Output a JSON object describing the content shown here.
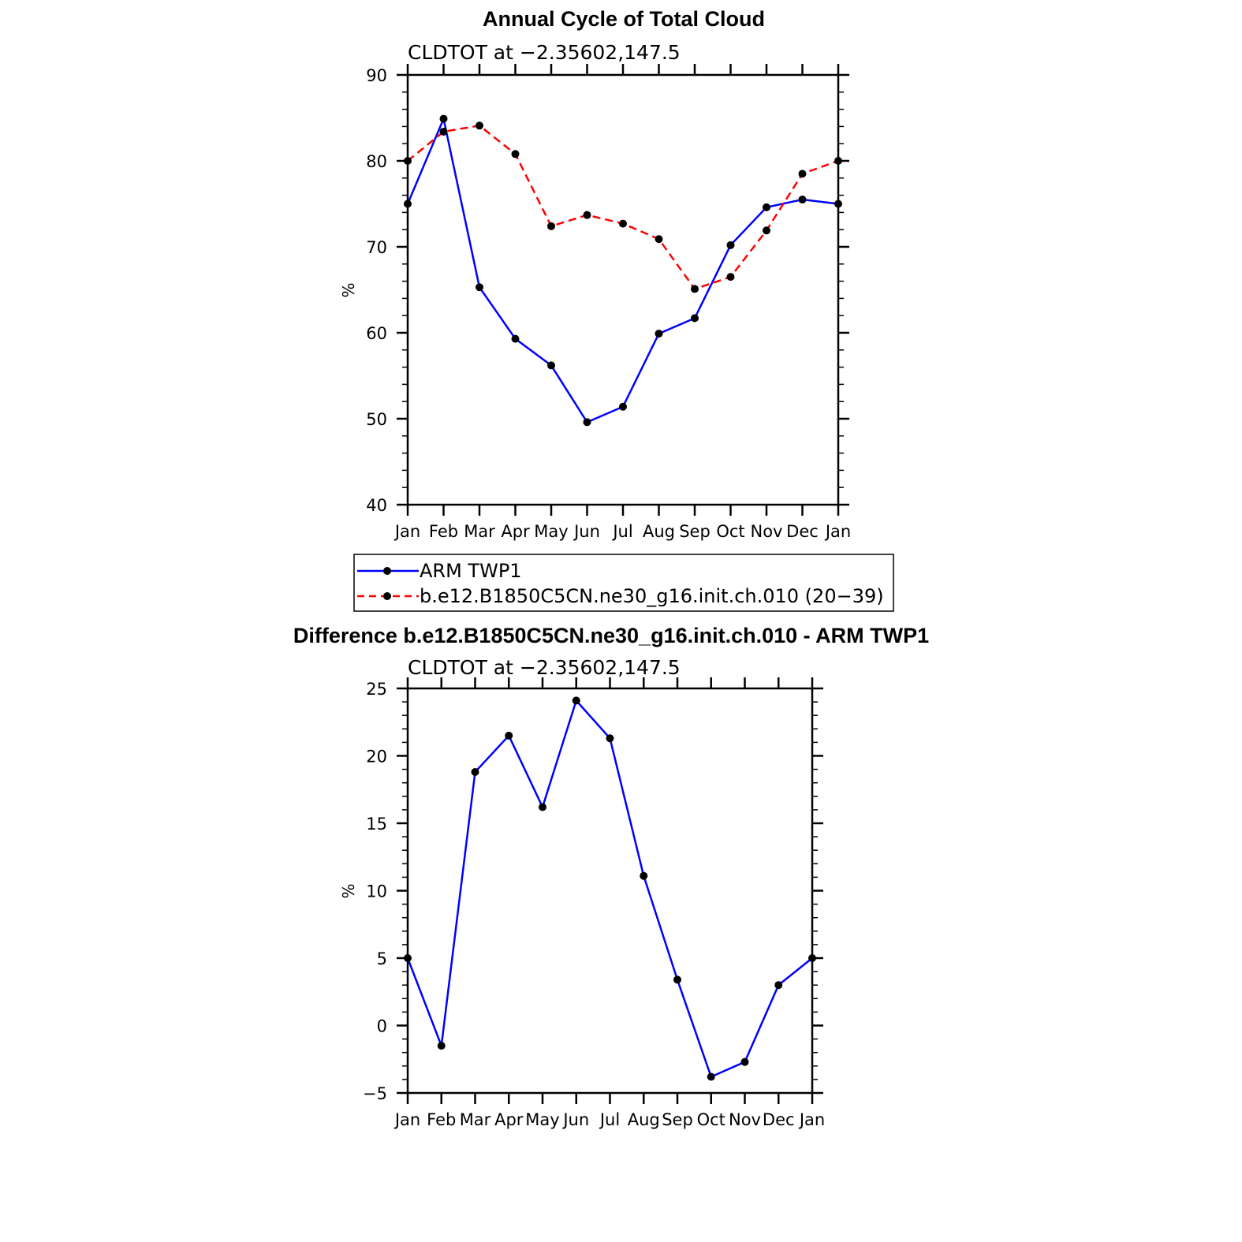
{
  "chart_data": [
    {
      "type": "line",
      "title": "Annual Cycle of Total Cloud",
      "subtitle": "CLDTOT at −2.35602,147.5",
      "xlabel": "",
      "ylabel": "%",
      "ylim": [
        40,
        90
      ],
      "yticks": [
        "40",
        "50",
        "60",
        "70",
        "80",
        "90"
      ],
      "categories": [
        "Jan",
        "Feb",
        "Mar",
        "Apr",
        "May",
        "Jun",
        "Jul",
        "Aug",
        "Sep",
        "Oct",
        "Nov",
        "Dec",
        "Jan"
      ],
      "legend_position": "bottom",
      "series": [
        {
          "name": "ARM TWP1",
          "color": "#0000ff",
          "dashed": false,
          "values": [
            75.0,
            84.9,
            65.3,
            59.3,
            56.2,
            49.6,
            51.4,
            59.9,
            61.7,
            70.2,
            74.6,
            75.5,
            75.0
          ]
        },
        {
          "name": "b.e12.B1850C5CN.ne30_g16.init.ch.010 (20−39)",
          "color": "#ff0000",
          "dashed": true,
          "values": [
            80.0,
            83.4,
            84.1,
            80.8,
            72.4,
            73.7,
            72.7,
            70.9,
            65.1,
            66.5,
            71.9,
            78.5,
            80.0
          ]
        }
      ]
    },
    {
      "type": "line",
      "title": "Difference b.e12.B1850C5CN.ne30_g16.init.ch.010 - ARM TWP1",
      "subtitle": "CLDTOT at −2.35602,147.5",
      "xlabel": "",
      "ylabel": "%",
      "ylim": [
        -5,
        25
      ],
      "yticks": [
        "−5",
        "0",
        "5",
        "10",
        "15",
        "20",
        "25"
      ],
      "categories": [
        "Jan",
        "Feb",
        "Mar",
        "Apr",
        "May",
        "Jun",
        "Jul",
        "Aug",
        "Sep",
        "Oct",
        "Nov",
        "Dec",
        "Jan"
      ],
      "series": [
        {
          "name": "Difference",
          "color": "#0000ff",
          "dashed": false,
          "values": [
            5.0,
            -1.5,
            18.8,
            21.5,
            16.2,
            24.1,
            21.3,
            11.1,
            3.4,
            -3.8,
            -2.7,
            3.0,
            5.0
          ]
        }
      ]
    }
  ]
}
